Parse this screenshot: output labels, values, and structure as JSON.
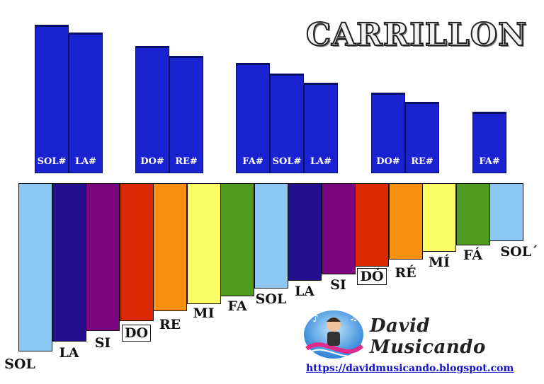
{
  "title": "CARRILLON",
  "colors": {
    "sharp": "#1b22d2",
    "bars": [
      "#8ec8f5",
      "#24108f",
      "#7a0780",
      "#dc2a06",
      "#f7900f",
      "#fbfb66",
      "#4f9b20",
      "#8ec8f5",
      "#24108f",
      "#7a0780",
      "#dc2a06",
      "#f7900f",
      "#fbfb66",
      "#4f9b20",
      "#8ec8f5"
    ]
  },
  "sharp_keys": [
    {
      "label": "SOL#"
    },
    {
      "label": "LA#"
    },
    {
      "label": "DO#"
    },
    {
      "label": "RE#"
    },
    {
      "label": "FA#"
    },
    {
      "label": "SOL#"
    },
    {
      "label": "LA#"
    },
    {
      "label": "DO#"
    },
    {
      "label": "RE#"
    },
    {
      "label": "FA#"
    }
  ],
  "natural_keys": [
    {
      "label": "SOL"
    },
    {
      "label": "LA"
    },
    {
      "label": "SI"
    },
    {
      "label": "DO"
    },
    {
      "label": "RE"
    },
    {
      "label": "MI"
    },
    {
      "label": "FA"
    },
    {
      "label": "SOL"
    },
    {
      "label": "LA"
    },
    {
      "label": "SI"
    },
    {
      "label": "DÓ"
    },
    {
      "label": "RÉ"
    },
    {
      "label": "MÍ"
    },
    {
      "label": "FÁ"
    },
    {
      "label": "SOL´"
    }
  ],
  "brand": {
    "name": "David Musicando",
    "url": "https://davidmusicando.blogspot.com"
  }
}
